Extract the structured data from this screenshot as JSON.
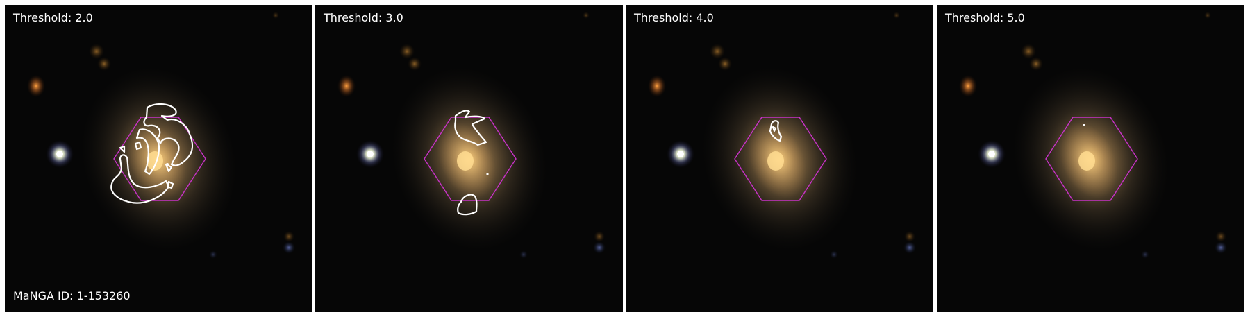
{
  "panels": [
    {
      "label": "Threshold: 2.0"
    },
    {
      "label": "Threshold: 3.0"
    },
    {
      "label": "Threshold: 4.0"
    },
    {
      "label": "Threshold: 5.0"
    }
  ],
  "galaxy_id": "MaNGA ID: 1-153260",
  "colors": {
    "hexagon": "#c832c8",
    "contour": "#ffffff",
    "background": "#050505"
  }
}
